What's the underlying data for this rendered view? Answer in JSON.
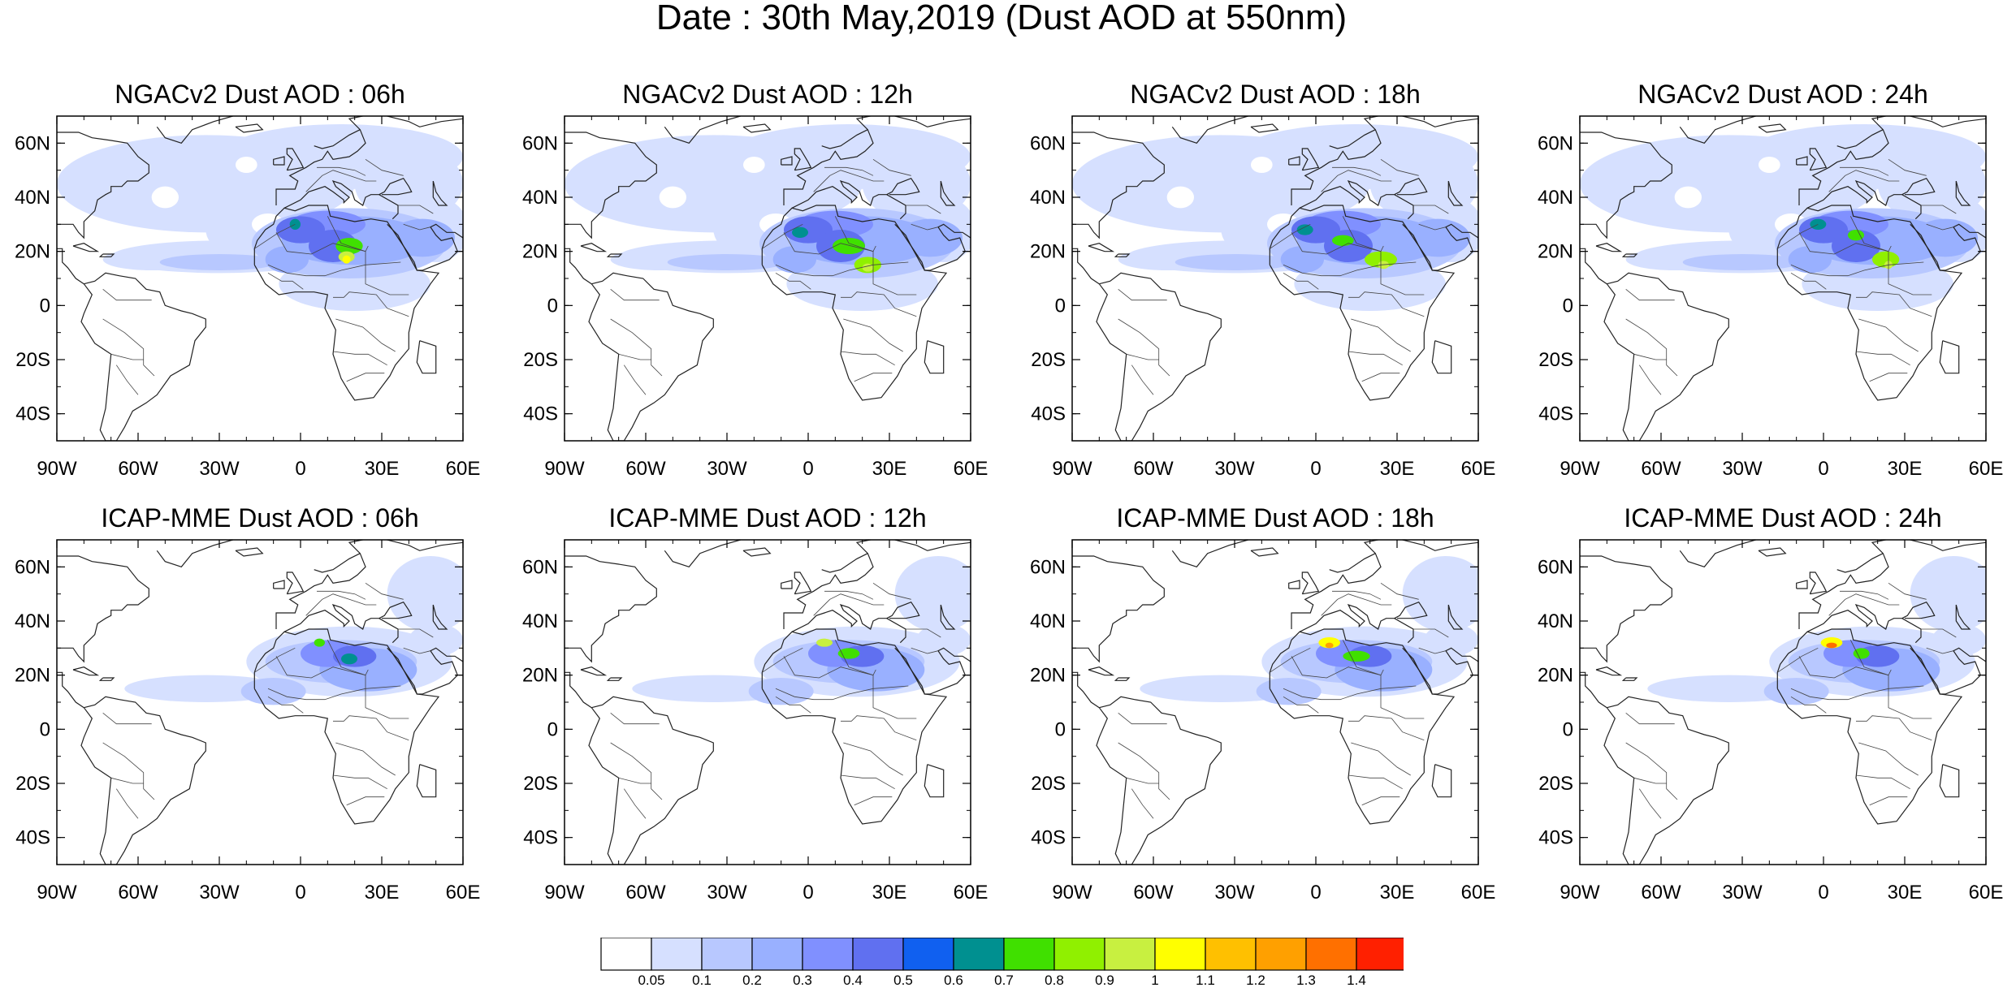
{
  "title": "Date : 30th May,2019 (Dust AOD at 550nm)",
  "axes": {
    "lon_ticks": [
      "90W",
      "60W",
      "30W",
      "0",
      "30E",
      "60E"
    ],
    "lat_ticks": [
      "60N",
      "40N",
      "20N",
      "0",
      "20S",
      "40S"
    ],
    "lon_range": [
      -90,
      60
    ],
    "lat_range": [
      -50,
      70
    ]
  },
  "panels": [
    {
      "id": "ngac-06",
      "title": "NGACv2 Dust AOD : 06h",
      "model": "NGACv2",
      "hour": 6
    },
    {
      "id": "ngac-12",
      "title": "NGACv2 Dust AOD : 12h",
      "model": "NGACv2",
      "hour": 12
    },
    {
      "id": "ngac-18",
      "title": "NGACv2 Dust AOD : 18h",
      "model": "NGACv2",
      "hour": 18
    },
    {
      "id": "ngac-24",
      "title": "NGACv2 Dust AOD : 24h",
      "model": "NGACv2",
      "hour": 24
    },
    {
      "id": "icap-06",
      "title": "ICAP-MME Dust AOD : 06h",
      "model": "ICAP-MME",
      "hour": 6
    },
    {
      "id": "icap-12",
      "title": "ICAP-MME Dust AOD : 12h",
      "model": "ICAP-MME",
      "hour": 12
    },
    {
      "id": "icap-18",
      "title": "ICAP-MME Dust AOD : 18h",
      "model": "ICAP-MME",
      "hour": 18
    },
    {
      "id": "icap-24",
      "title": "ICAP-MME Dust AOD : 24h",
      "model": "ICAP-MME",
      "hour": 24
    }
  ],
  "colorbar": {
    "labels": [
      "0.05",
      "0.1",
      "0.2",
      "0.3",
      "0.4",
      "0.5",
      "0.6",
      "0.7",
      "0.8",
      "0.9",
      "1",
      "1.1",
      "1.2",
      "1.3",
      "1.4"
    ],
    "colors": [
      "#ffffff",
      "#d6e0ff",
      "#b8c8ff",
      "#99b0ff",
      "#8090ff",
      "#6070f0",
      "#1060f0",
      "#009090",
      "#40e000",
      "#90f000",
      "#c8f040",
      "#ffff00",
      "#ffc000",
      "#ffa000",
      "#ff7000",
      "#ff2000"
    ]
  }
}
